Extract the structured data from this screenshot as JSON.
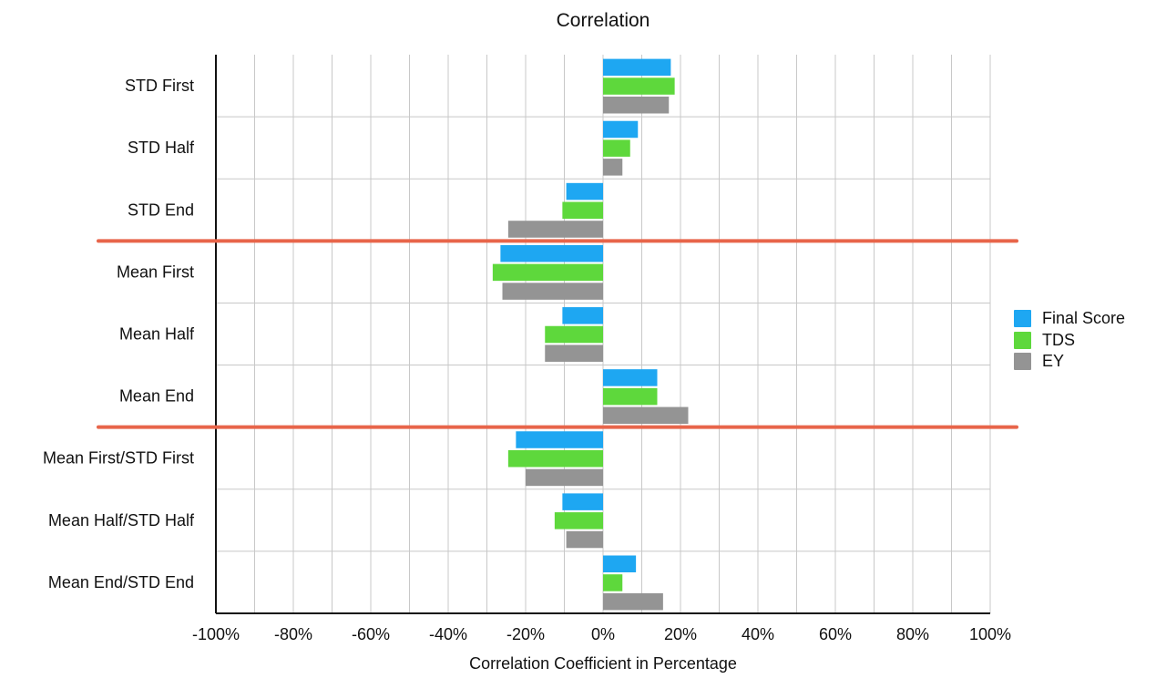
{
  "chart_data": {
    "type": "bar",
    "orientation": "horizontal",
    "title": "Correlation",
    "xlabel": "Correlation Coefficient in Percentage",
    "ylabel": "",
    "xlim": [
      -100,
      100
    ],
    "x_ticks": [
      "-100%",
      "-80%",
      "-60%",
      "-40%",
      "-20%",
      "0%",
      "20%",
      "40%",
      "60%",
      "80%",
      "100%"
    ],
    "grid": true,
    "legend_position": "right",
    "categories": [
      "STD First",
      "STD Half",
      "STD End",
      "Mean First",
      "Mean Half",
      "Mean End",
      "Mean First/STD First",
      "Mean Half/STD Half",
      "Mean End/STD End"
    ],
    "series": [
      {
        "name": "Final Score",
        "color": "#1ea7f2",
        "values": [
          17.5,
          9,
          -9.5,
          -26.5,
          -10.5,
          14,
          -22.5,
          -10.5,
          8.5
        ]
      },
      {
        "name": "TDS",
        "color": "#5ed83c",
        "values": [
          18.5,
          7,
          -10.5,
          -28.5,
          -15,
          14,
          -24.5,
          -12.5,
          5
        ]
      },
      {
        "name": "EY",
        "color": "#949494",
        "values": [
          17,
          5,
          -24.5,
          -26,
          -15,
          22,
          -20,
          -9.5,
          15.5
        ]
      }
    ],
    "group_separators_after": [
      "STD End",
      "Mean End"
    ],
    "separator_color": "#e8654a"
  }
}
